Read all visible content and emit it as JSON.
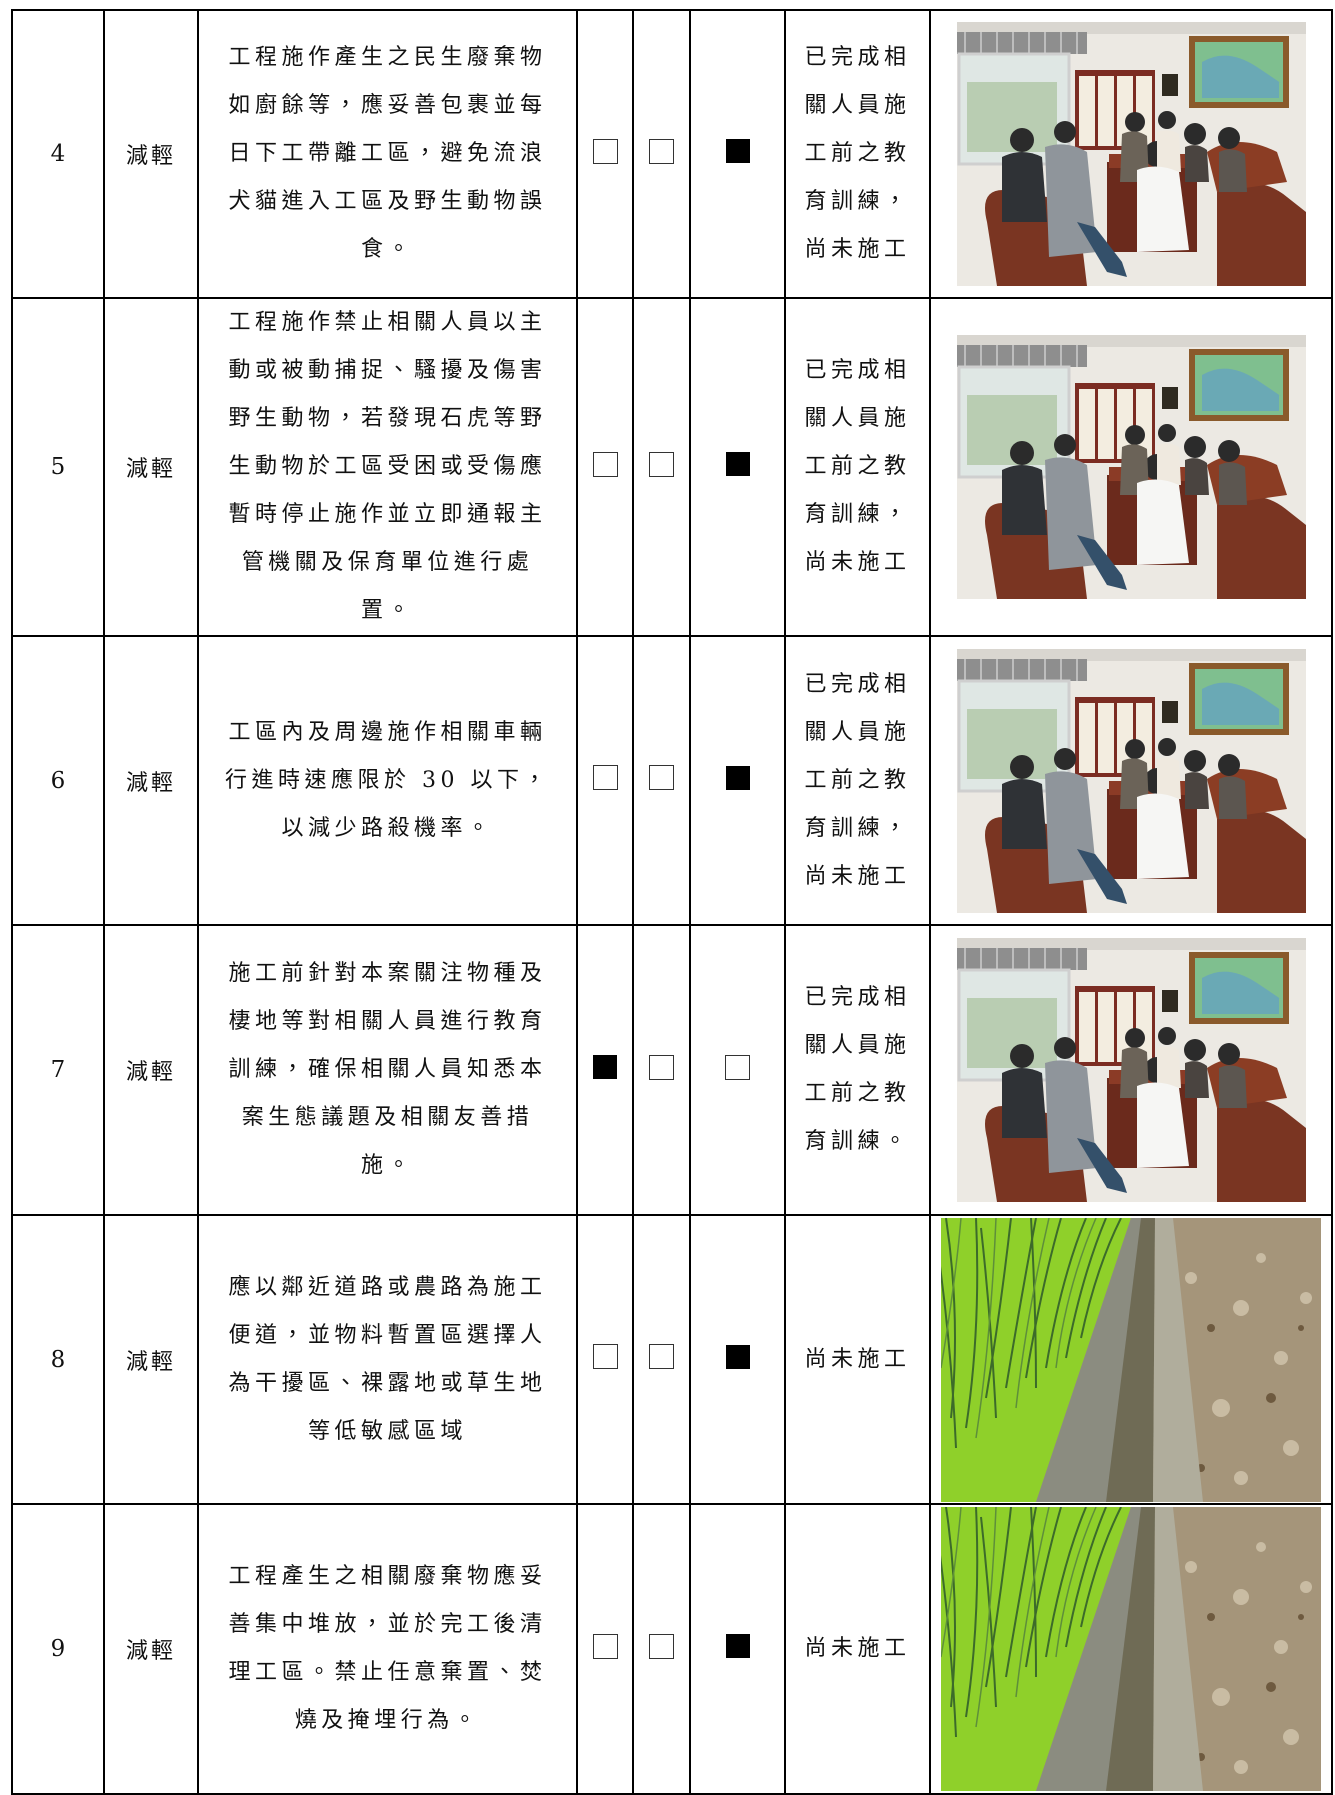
{
  "rows": [
    {
      "no": "4",
      "type": "減輕",
      "measure": "工程施作產生之民生廢棄物如廚餘等，應妥善包裹並每日下工帶離工區，避免流浪犬貓進入工區及野生動物誤食。",
      "checks": [
        false,
        false,
        true
      ],
      "status": "已完成相關人員施工前之教育訓練，尚未施工"
    },
    {
      "no": "5",
      "type": "減輕",
      "measure": "工程施作禁止相關人員以主動或被動捕捉、騷擾及傷害野生動物，若發現石虎等野生動物於工區受困或受傷應暫時停止施作並立即通報主管機關及保育單位進行處置。",
      "checks": [
        false,
        false,
        true
      ],
      "status": "已完成相關人員施工前之教育訓練，尚未施工"
    },
    {
      "no": "6",
      "type": "減輕",
      "measure": "工區內及周邊施作相關車輛行進時速應限於 30 以下，以減少路殺機率。",
      "checks": [
        false,
        false,
        true
      ],
      "status": "已完成相關人員施工前之教育訓練，尚未施工"
    },
    {
      "no": "7",
      "type": "減輕",
      "measure": "施工前針對本案關注物種及棲地等對相關人員進行教育訓練，確保相關人員知悉本案生態議題及相關友善措施。",
      "checks": [
        true,
        false,
        false
      ],
      "status": "已完成相關人員施工前之教育訓練。"
    },
    {
      "no": "8",
      "type": "減輕",
      "measure": "應以鄰近道路或農路為施工便道，並物料暫置區選擇人為干擾區、裸露地或草生地等低敏感區域",
      "checks": [
        false,
        false,
        true
      ],
      "status": "尚未施工"
    },
    {
      "no": "9",
      "type": "減輕",
      "measure": "工程產生之相關廢棄物應妥善集中堆放，並於完工後清理工區。禁止任意棄置、焚燒及掩埋行為。",
      "checks": [
        false,
        false,
        true
      ],
      "status": "尚未施工"
    }
  ]
}
